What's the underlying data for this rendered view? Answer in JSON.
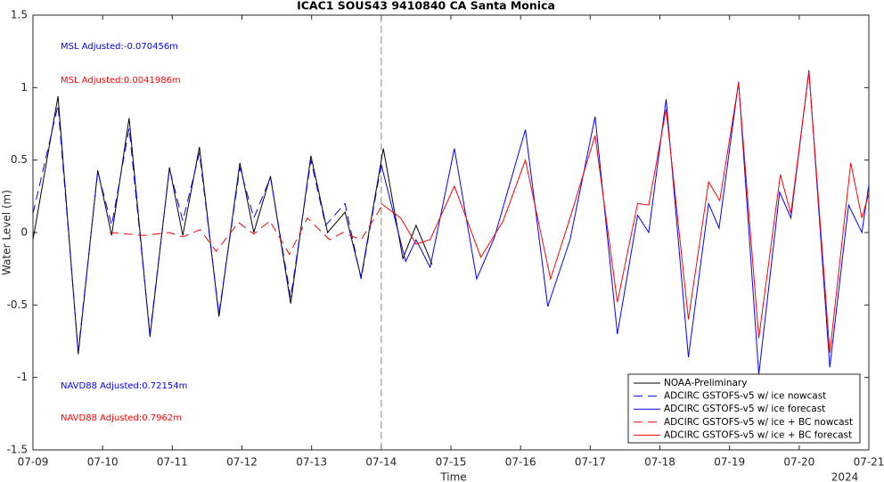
{
  "chart_data": {
    "type": "line",
    "title": "ICAC1 SOUS43 9410840 CA Santa Monica",
    "x_label": "Time",
    "y_label": "Water Level (m)",
    "x_year": "2024",
    "xlim": [
      0,
      12
    ],
    "xticks": [
      {
        "value": 0,
        "label": "07-09"
      },
      {
        "value": 1,
        "label": "07-10"
      },
      {
        "value": 2,
        "label": "07-11"
      },
      {
        "value": 3,
        "label": "07-12"
      },
      {
        "value": 4,
        "label": "07-13"
      },
      {
        "value": 5,
        "label": "07-14"
      },
      {
        "value": 6,
        "label": "07-15"
      },
      {
        "value": 7,
        "label": "07-16"
      },
      {
        "value": 8,
        "label": "07-17"
      },
      {
        "value": 9,
        "label": "07-18"
      },
      {
        "value": 10,
        "label": "07-19"
      },
      {
        "value": 11,
        "label": "07-20"
      },
      {
        "value": 12,
        "label": "07-21"
      }
    ],
    "ylim": [
      -1.5,
      1.5
    ],
    "yticks": [
      -1.5,
      -1,
      -0.5,
      0,
      0.5,
      1,
      1.5
    ],
    "vlines": [
      5
    ],
    "legend": "lower right",
    "annotations": [
      {
        "text": "MSL Adjusted:-0.070456m",
        "color": "#0000ff"
      },
      {
        "text": "MSL Adjusted:0.0041986m",
        "color": "#ff0000"
      },
      {
        "text": "NAVD88 Adjusted:0.72154m",
        "color": "#0000ff"
      },
      {
        "text": "NAVD88 Adjusted:0.7962m",
        "color": "#ff0000"
      }
    ],
    "series": [
      {
        "name": "NOAA-Preliminary",
        "color": "#000000",
        "style": "solid",
        "x": [
          0,
          0.36,
          0.65,
          0.93,
          1.13,
          1.38,
          1.68,
          1.96,
          2.15,
          2.39,
          2.67,
          2.97,
          3.17,
          3.41,
          3.7,
          3.99,
          4.23,
          4.48,
          4.71,
          5.03,
          5.31,
          5.5,
          5.73
        ],
        "values": [
          -0.05,
          0.94,
          -0.84,
          0.43,
          -0.02,
          0.79,
          -0.72,
          0.45,
          -0.02,
          0.59,
          -0.58,
          0.48,
          0,
          0.39,
          -0.49,
          0.53,
          0,
          0.14,
          -0.31,
          0.58,
          -0.18,
          0.05,
          -0.22
        ]
      },
      {
        "name": "ADCIRC GSTOFS-v5 w/ ice nowcast",
        "color": "#0000ff",
        "style": "dashed",
        "x": [
          0,
          0.36,
          0.65,
          0.93,
          1.13,
          1.38,
          1.68,
          1.96,
          2.15,
          2.39,
          2.67,
          2.97,
          3.17,
          3.41,
          3.7,
          3.99,
          4.2,
          4.48,
          4.71,
          5
        ],
        "values": [
          0.13,
          0.88,
          -0.82,
          0.42,
          0.05,
          0.72,
          -0.7,
          0.44,
          0.08,
          0.55,
          -0.56,
          0.45,
          0.1,
          0.38,
          -0.45,
          0.5,
          0.05,
          0.2,
          -0.32,
          0.47
        ]
      },
      {
        "name": "ADCIRC GSTOFS-v5 w/ ice forecast",
        "color": "#0000ff",
        "style": "solid",
        "x": [
          5,
          5.35,
          5.5,
          5.7,
          6.05,
          6.37,
          6.62,
          7.07,
          7.39,
          7.71,
          8.07,
          8.39,
          8.68,
          8.84,
          9.09,
          9.41,
          9.7,
          9.85,
          10.13,
          10.42,
          10.72,
          10.88,
          11.14,
          11.44,
          11.71,
          11.9,
          12
        ],
        "values": [
          0.47,
          -0.2,
          -0.05,
          -0.24,
          0.58,
          -0.32,
          -0.04,
          0.71,
          -0.51,
          -0.05,
          0.8,
          -0.7,
          0.12,
          0,
          0.92,
          -0.86,
          0.2,
          0.03,
          1.04,
          -0.98,
          0.28,
          0.1,
          1.12,
          -0.93,
          0.19,
          0,
          0.33
        ]
      },
      {
        "name": "ADCIRC GSTOFS-v5 w/ ice + BC nowcast",
        "color": "#ff0000",
        "style": "dashed",
        "x": [
          1.1,
          1.6,
          1.95,
          2.15,
          2.4,
          2.63,
          2.95,
          3.17,
          3.4,
          3.68,
          3.94,
          4.26,
          4.45,
          4.71,
          5.03
        ],
        "values": [
          0,
          -0.02,
          0,
          -0.03,
          0.02,
          -0.13,
          0.07,
          -0.01,
          0.08,
          -0.15,
          0.1,
          -0.05,
          0,
          -0.05,
          0.2
        ]
      },
      {
        "name": "ADCIRC GSTOFS-v5 w/ ice + BC forecast",
        "color": "#ff0000",
        "style": "solid",
        "x": [
          5,
          5.28,
          5.5,
          5.7,
          6.05,
          6.43,
          6.75,
          7.07,
          7.43,
          7.71,
          8.07,
          8.39,
          8.68,
          8.84,
          9.09,
          9.41,
          9.7,
          9.86,
          10.13,
          10.42,
          10.73,
          10.88,
          11.14,
          11.44,
          11.74,
          11.9,
          12
        ],
        "values": [
          0.2,
          0.1,
          -0.08,
          -0.05,
          0.32,
          -0.17,
          0.08,
          0.5,
          -0.32,
          0.1,
          0.67,
          -0.48,
          0.2,
          0.19,
          0.85,
          -0.6,
          0.35,
          0.22,
          1.03,
          -0.73,
          0.4,
          0.13,
          1.11,
          -0.83,
          0.48,
          0.1,
          0.27
        ]
      }
    ]
  }
}
